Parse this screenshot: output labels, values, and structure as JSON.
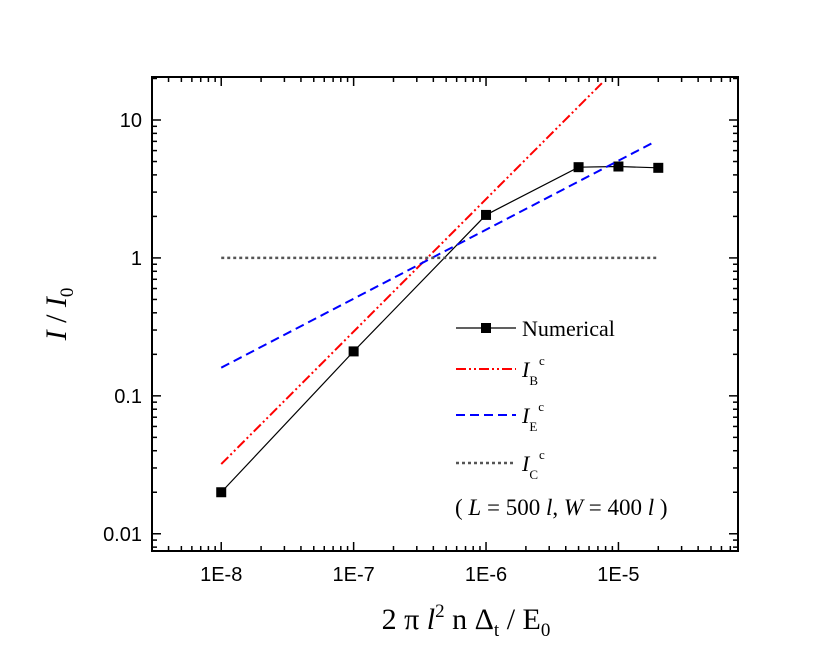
{
  "chart_data": {
    "type": "line",
    "x_scale": "log",
    "y_scale": "log",
    "xlim": [
      3e-09,
      8e-05
    ],
    "ylim": [
      0.0075,
      20.5
    ],
    "x_ticks": [
      {
        "value": 1e-08,
        "label": "1E-8"
      },
      {
        "value": 1e-07,
        "label": "1E-7"
      },
      {
        "value": 1e-06,
        "label": "1E-6"
      },
      {
        "value": 1e-05,
        "label": "1E-5"
      }
    ],
    "y_ticks": [
      {
        "value": 0.01,
        "label": "0.01"
      },
      {
        "value": 0.1,
        "label": "0.1"
      },
      {
        "value": 1,
        "label": "1"
      },
      {
        "value": 10,
        "label": "10"
      }
    ],
    "xlabel": {
      "pre": "2 π ",
      "l": "l",
      "l_sup": "2",
      "mid": " n Δ",
      "sub": "t",
      "post": " / E",
      "post_sub": "0"
    },
    "ylabel": {
      "I": "I",
      "slash": " / ",
      "I0": "I",
      "sub": "0"
    },
    "series": [
      {
        "name": "Numerical",
        "style": "line-square-markers",
        "color": "#000000",
        "x": [
          1e-08,
          1e-07,
          1e-06,
          5e-06,
          1e-05,
          2e-05
        ],
        "y": [
          0.02,
          0.21,
          2.05,
          4.55,
          4.6,
          4.5
        ]
      },
      {
        "name": "I_B^c",
        "style": "dash-dot-dot",
        "color": "#ff0000",
        "x": [
          1e-08,
          7.5e-06
        ],
        "y": [
          0.032,
          18.5
        ]
      },
      {
        "name": "I_E^c",
        "style": "dash",
        "color": "#0000ff",
        "x": [
          1e-08,
          1.8e-05
        ],
        "y": [
          0.16,
          6.8
        ]
      },
      {
        "name": "I_C^c",
        "style": "dot",
        "color": "#555555",
        "x": [
          1e-08,
          2e-05
        ],
        "y": [
          1,
          1
        ]
      }
    ],
    "legend": {
      "placement": "bottom-right",
      "entries": [
        {
          "key": "numerical",
          "text": "Numerical"
        },
        {
          "key": "ib",
          "main": "I",
          "sub": "B",
          "sup": "c"
        },
        {
          "key": "ie",
          "main": "I",
          "sub": "E",
          "sup": "c"
        },
        {
          "key": "ic",
          "main": "I",
          "sub": "C",
          "sup": "c"
        }
      ],
      "params": {
        "open": "( ",
        "L": "L",
        "L_val": " = 500 ",
        "l1": "l",
        "comma": ", ",
        "W": "W",
        "W_val": " = 400 ",
        "l2": "l",
        "close": " )"
      }
    }
  }
}
